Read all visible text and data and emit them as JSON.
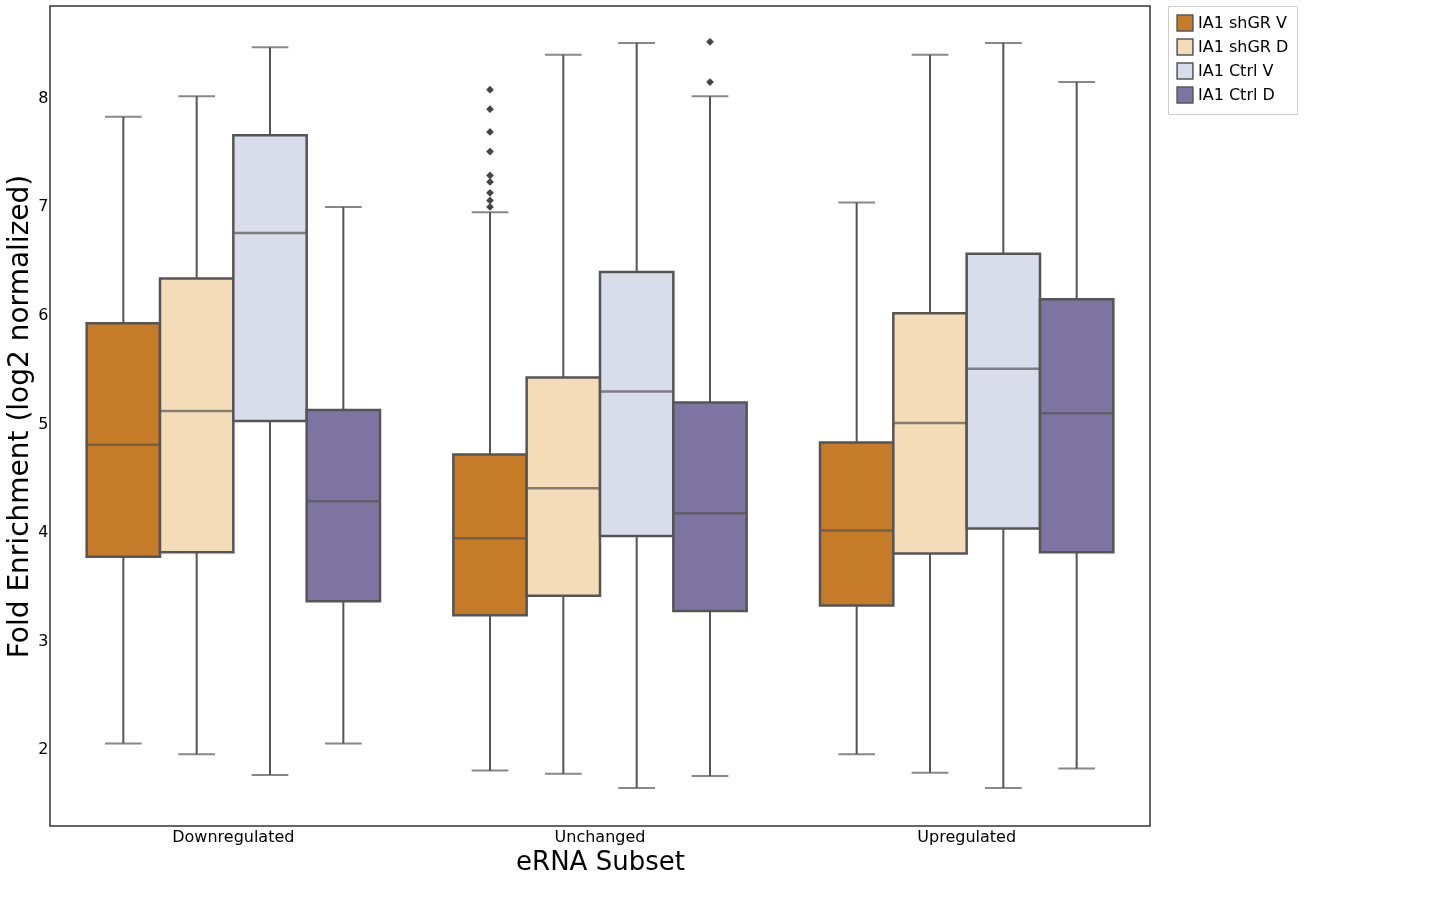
{
  "chart_data": {
    "type": "box",
    "xlabel": "eRNA Subset",
    "ylabel": "Fold Enrichment (log2 normalized)",
    "categories": [
      "Downregulated",
      "Unchanged",
      "Upregulated"
    ],
    "ylim": [
      1.29,
      8.84
    ],
    "yticks": [
      2,
      3,
      4,
      5,
      6,
      7,
      8
    ],
    "grid": false,
    "legend": "top right",
    "series": [
      {
        "name": "IA1 shGR V",
        "color": "#c57b27",
        "boxes": [
          {
            "low": 2.05,
            "q1": 3.77,
            "median": 4.8,
            "q3": 5.92,
            "high": 7.82
          },
          {
            "low": 1.8,
            "q1": 3.23,
            "median": 3.94,
            "q3": 4.71,
            "high": 6.94,
            "outliers": [
              8.07,
              7.89,
              7.68,
              7.5,
              7.28,
              7.22,
              7.12,
              7.05,
              6.99
            ]
          },
          {
            "low": 1.95,
            "q1": 3.32,
            "median": 4.01,
            "q3": 4.82,
            "high": 7.03
          }
        ]
      },
      {
        "name": "IA1 shGR D",
        "color": "#f5dcb9",
        "boxes": [
          {
            "low": 1.95,
            "q1": 3.81,
            "median": 5.11,
            "q3": 6.33,
            "high": 8.01
          },
          {
            "low": 1.77,
            "q1": 3.41,
            "median": 4.4,
            "q3": 5.42,
            "high": 8.39
          },
          {
            "low": 1.78,
            "q1": 3.8,
            "median": 5.0,
            "q3": 6.01,
            "high": 8.39
          }
        ]
      },
      {
        "name": "IA1 Ctrl V",
        "color": "#d9dcea",
        "boxes": [
          {
            "low": 1.76,
            "q1": 5.02,
            "median": 6.75,
            "q3": 7.65,
            "high": 8.46
          },
          {
            "low": 1.64,
            "q1": 3.96,
            "median": 5.29,
            "q3": 6.39,
            "high": 8.5
          },
          {
            "low": 1.64,
            "q1": 4.03,
            "median": 5.5,
            "q3": 6.56,
            "high": 8.5
          }
        ]
      },
      {
        "name": "IA1 Ctrl D",
        "color": "#7e74a2",
        "boxes": [
          {
            "low": 2.05,
            "q1": 3.36,
            "median": 4.28,
            "q3": 5.12,
            "high": 6.99
          },
          {
            "low": 1.75,
            "q1": 3.27,
            "median": 4.17,
            "q3": 5.19,
            "high": 8.01,
            "outliers": [
              8.51,
              8.14
            ]
          },
          {
            "low": 1.82,
            "q1": 3.81,
            "median": 5.09,
            "q3": 6.14,
            "high": 8.14
          }
        ]
      }
    ]
  }
}
